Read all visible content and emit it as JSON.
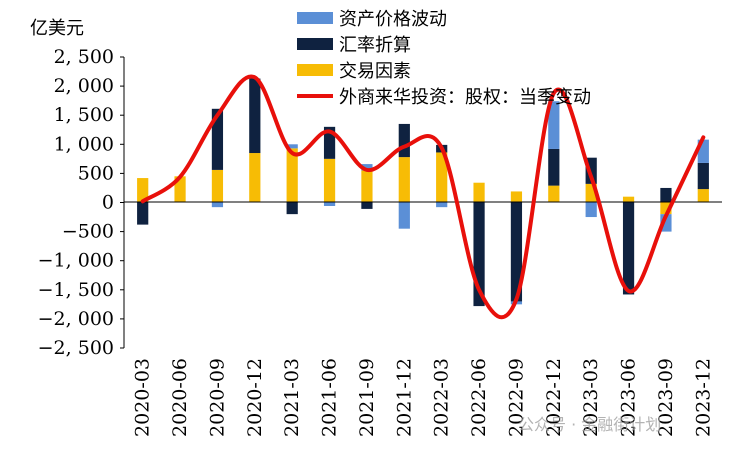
{
  "chart_data": {
    "type": "bar",
    "stacked": true,
    "unit_label": "亿美元",
    "categories": [
      "2020-03",
      "2020-06",
      "2020-09",
      "2020-12",
      "2021-03",
      "2021-06",
      "2021-09",
      "2021-12",
      "2022-03",
      "2022-06",
      "2022-09",
      "2022-12",
      "2023-03",
      "2023-06",
      "2023-09",
      "2023-12"
    ],
    "series": [
      {
        "name": "资产价格波动",
        "kind": "bar",
        "color": "#5B8FD6",
        "values": [
          0,
          0,
          -80,
          0,
          70,
          -60,
          110,
          -450,
          -80,
          0,
          -50,
          820,
          -250,
          0,
          -300,
          400
        ]
      },
      {
        "name": "汇率折算",
        "kind": "bar",
        "color": "#0F2240",
        "values": [
          -380,
          0,
          1050,
          1280,
          -200,
          550,
          -110,
          570,
          130,
          -1780,
          -1700,
          630,
          450,
          -1580,
          250,
          450
        ]
      },
      {
        "name": "交易因素",
        "kind": "bar",
        "color": "#F7BC05",
        "values": [
          420,
          450,
          560,
          850,
          930,
          750,
          550,
          780,
          860,
          340,
          190,
          290,
          320,
          100,
          -200,
          230
        ]
      },
      {
        "name": "外商来华投资：股权：当季变动",
        "kind": "line",
        "color": "#E8100B",
        "values": [
          20,
          440,
          1500,
          2150,
          850,
          1220,
          560,
          960,
          940,
          -1500,
          -1660,
          1880,
          440,
          -1520,
          -230,
          1120
        ]
      }
    ],
    "xlabel": "",
    "ylabel": "亿美元",
    "ylim": [
      -2500,
      2500
    ],
    "yticks": [
      -2500,
      -2000,
      -1500,
      -1000,
      -500,
      0,
      500,
      1000,
      1500,
      2000,
      2500
    ],
    "ytick_labels": [
      "−2, 500",
      "−2, 000",
      "−1, 500",
      "−1, 000",
      "−500",
      "0",
      "500",
      "1, 000",
      "1, 500",
      "2, 000",
      "2, 500"
    ],
    "legend_position": "top-right",
    "grid": false
  },
  "watermark": "公众号 · 金融街计划"
}
